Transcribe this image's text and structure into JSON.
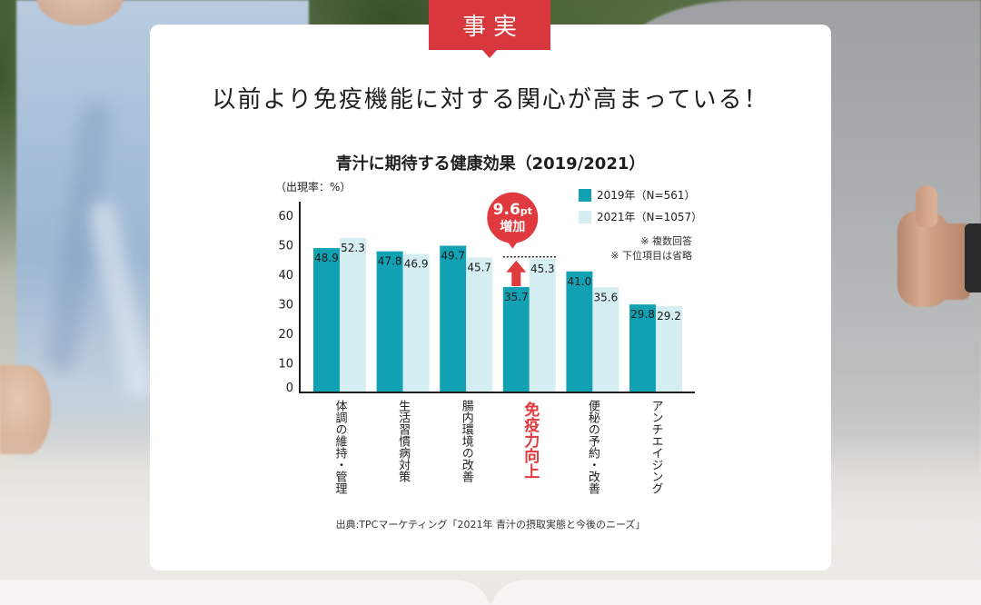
{
  "tab": {
    "label": "事実",
    "color": "#d8373d"
  },
  "headline": "以前より免疫機能に対する関心が高まっている！",
  "chart_data": {
    "type": "bar",
    "title": "青汁に期待する健康効果（2019/2021）",
    "xlabel": "",
    "ylabel": "（出現率：%）",
    "ylim": [
      0,
      60
    ],
    "yticks": [
      0,
      10,
      20,
      30,
      40,
      50,
      60
    ],
    "grid": false,
    "categories": [
      "体調の維持・管理",
      "生活習慣病対策",
      "腸内環境の改善",
      "免疫力向上",
      "便秘の予約・改善",
      "アンチエイジング"
    ],
    "series": [
      {
        "name": "2019年（N=561）",
        "values": [
          48.9,
          47.8,
          49.7,
          35.7,
          41.0,
          29.8
        ],
        "color": "#12a1b3"
      },
      {
        "name": "2021年（N=1057）",
        "values": [
          52.3,
          46.9,
          45.7,
          45.3,
          35.6,
          29.2
        ],
        "color": "#d4eef1"
      }
    ],
    "legend_position": "top-right",
    "notes": [
      "※ 複数回答",
      "※ 下位項目は省略"
    ],
    "highlight": {
      "category": "免疫力向上",
      "color": "#e0393e"
    },
    "annotation": {
      "category": "免疫力向上",
      "value": "9.6",
      "unit": "pt",
      "text": "増加",
      "color": "#e0393e"
    },
    "source": "出典:TPCマーケティング「2021年 青汁の摂取実態と今後のニーズ」"
  }
}
